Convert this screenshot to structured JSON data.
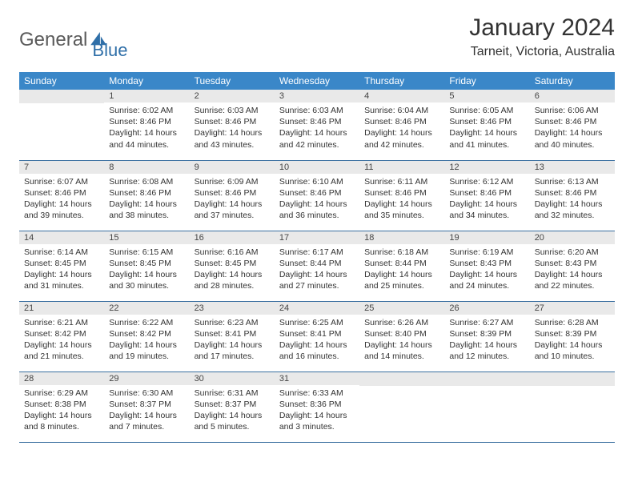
{
  "logo": {
    "word1": "General",
    "word2": "Blue"
  },
  "title": "January 2024",
  "location": "Tarneit, Victoria, Australia",
  "colors": {
    "header_bg": "#3a87c8",
    "header_text": "#ffffff",
    "row_divider": "#3a6fa0",
    "daynum_bg": "#e9e9e9",
    "logo_gray": "#5a5a5a",
    "logo_blue": "#2f6fa8"
  },
  "weekdays": [
    "Sunday",
    "Monday",
    "Tuesday",
    "Wednesday",
    "Thursday",
    "Friday",
    "Saturday"
  ],
  "start_offset": 1,
  "days": [
    {
      "n": 1,
      "sunrise": "6:02 AM",
      "sunset": "8:46 PM",
      "daylight": "14 hours and 44 minutes."
    },
    {
      "n": 2,
      "sunrise": "6:03 AM",
      "sunset": "8:46 PM",
      "daylight": "14 hours and 43 minutes."
    },
    {
      "n": 3,
      "sunrise": "6:03 AM",
      "sunset": "8:46 PM",
      "daylight": "14 hours and 42 minutes."
    },
    {
      "n": 4,
      "sunrise": "6:04 AM",
      "sunset": "8:46 PM",
      "daylight": "14 hours and 42 minutes."
    },
    {
      "n": 5,
      "sunrise": "6:05 AM",
      "sunset": "8:46 PM",
      "daylight": "14 hours and 41 minutes."
    },
    {
      "n": 6,
      "sunrise": "6:06 AM",
      "sunset": "8:46 PM",
      "daylight": "14 hours and 40 minutes."
    },
    {
      "n": 7,
      "sunrise": "6:07 AM",
      "sunset": "8:46 PM",
      "daylight": "14 hours and 39 minutes."
    },
    {
      "n": 8,
      "sunrise": "6:08 AM",
      "sunset": "8:46 PM",
      "daylight": "14 hours and 38 minutes."
    },
    {
      "n": 9,
      "sunrise": "6:09 AM",
      "sunset": "8:46 PM",
      "daylight": "14 hours and 37 minutes."
    },
    {
      "n": 10,
      "sunrise": "6:10 AM",
      "sunset": "8:46 PM",
      "daylight": "14 hours and 36 minutes."
    },
    {
      "n": 11,
      "sunrise": "6:11 AM",
      "sunset": "8:46 PM",
      "daylight": "14 hours and 35 minutes."
    },
    {
      "n": 12,
      "sunrise": "6:12 AM",
      "sunset": "8:46 PM",
      "daylight": "14 hours and 34 minutes."
    },
    {
      "n": 13,
      "sunrise": "6:13 AM",
      "sunset": "8:46 PM",
      "daylight": "14 hours and 32 minutes."
    },
    {
      "n": 14,
      "sunrise": "6:14 AM",
      "sunset": "8:45 PM",
      "daylight": "14 hours and 31 minutes."
    },
    {
      "n": 15,
      "sunrise": "6:15 AM",
      "sunset": "8:45 PM",
      "daylight": "14 hours and 30 minutes."
    },
    {
      "n": 16,
      "sunrise": "6:16 AM",
      "sunset": "8:45 PM",
      "daylight": "14 hours and 28 minutes."
    },
    {
      "n": 17,
      "sunrise": "6:17 AM",
      "sunset": "8:44 PM",
      "daylight": "14 hours and 27 minutes."
    },
    {
      "n": 18,
      "sunrise": "6:18 AM",
      "sunset": "8:44 PM",
      "daylight": "14 hours and 25 minutes."
    },
    {
      "n": 19,
      "sunrise": "6:19 AM",
      "sunset": "8:43 PM",
      "daylight": "14 hours and 24 minutes."
    },
    {
      "n": 20,
      "sunrise": "6:20 AM",
      "sunset": "8:43 PM",
      "daylight": "14 hours and 22 minutes."
    },
    {
      "n": 21,
      "sunrise": "6:21 AM",
      "sunset": "8:42 PM",
      "daylight": "14 hours and 21 minutes."
    },
    {
      "n": 22,
      "sunrise": "6:22 AM",
      "sunset": "8:42 PM",
      "daylight": "14 hours and 19 minutes."
    },
    {
      "n": 23,
      "sunrise": "6:23 AM",
      "sunset": "8:41 PM",
      "daylight": "14 hours and 17 minutes."
    },
    {
      "n": 24,
      "sunrise": "6:25 AM",
      "sunset": "8:41 PM",
      "daylight": "14 hours and 16 minutes."
    },
    {
      "n": 25,
      "sunrise": "6:26 AM",
      "sunset": "8:40 PM",
      "daylight": "14 hours and 14 minutes."
    },
    {
      "n": 26,
      "sunrise": "6:27 AM",
      "sunset": "8:39 PM",
      "daylight": "14 hours and 12 minutes."
    },
    {
      "n": 27,
      "sunrise": "6:28 AM",
      "sunset": "8:39 PM",
      "daylight": "14 hours and 10 minutes."
    },
    {
      "n": 28,
      "sunrise": "6:29 AM",
      "sunset": "8:38 PM",
      "daylight": "14 hours and 8 minutes."
    },
    {
      "n": 29,
      "sunrise": "6:30 AM",
      "sunset": "8:37 PM",
      "daylight": "14 hours and 7 minutes."
    },
    {
      "n": 30,
      "sunrise": "6:31 AM",
      "sunset": "8:37 PM",
      "daylight": "14 hours and 5 minutes."
    },
    {
      "n": 31,
      "sunrise": "6:33 AM",
      "sunset": "8:36 PM",
      "daylight": "14 hours and 3 minutes."
    }
  ],
  "labels": {
    "sunrise": "Sunrise:",
    "sunset": "Sunset:",
    "daylight": "Daylight:"
  }
}
